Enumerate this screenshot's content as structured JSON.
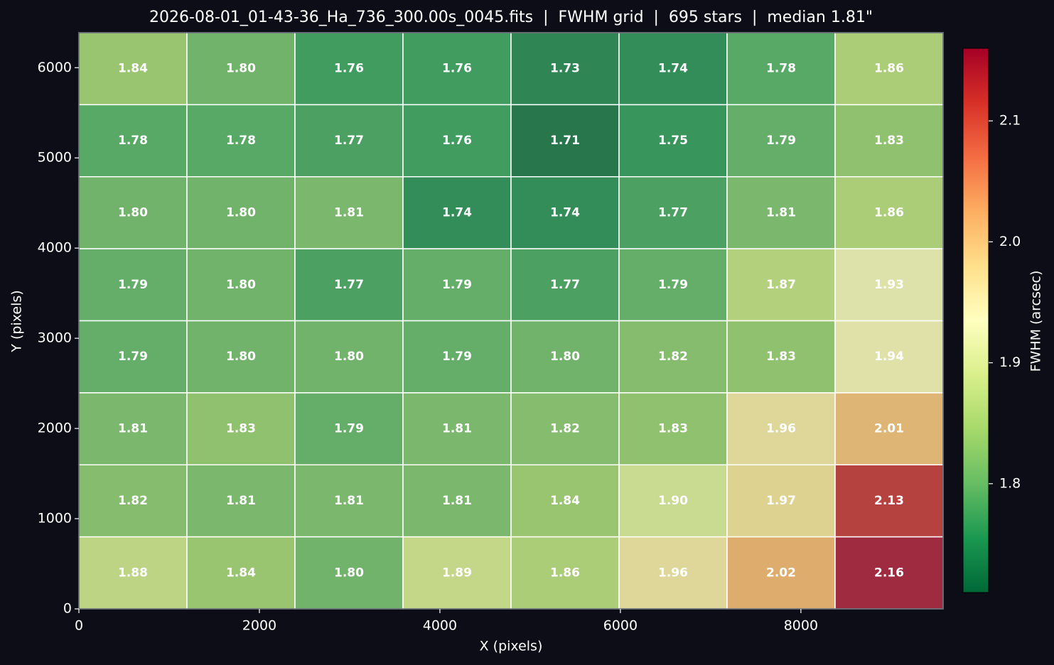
{
  "chart_data": {
    "type": "heatmap",
    "title": "2026-08-01_01-43-36_Ha_736_300.00s_0045.fits  |  FWHM grid  |  695 stars  |  median 1.81\"",
    "x_label": "X (pixels)",
    "y_label": "Y (pixels)",
    "colorbar_label": "FWHM (arcsec)",
    "xlim": [
      0,
      9576
    ],
    "ylim": [
      0,
      6388
    ],
    "xticks": [
      0,
      2000,
      4000,
      6000,
      8000
    ],
    "yticks": [
      0,
      1000,
      2000,
      3000,
      4000,
      5000,
      6000
    ],
    "clim": [
      1.71,
      2.16
    ],
    "cticks": [
      1.8,
      1.9,
      {
        "value": 2,
        "label": "2.0"
      },
      2.1
    ],
    "colormap": [
      "#006837",
      "#1a9850",
      "#66bd63",
      "#a6d96a",
      "#d9ef8b",
      "#ffffbf",
      "#fee08b",
      "#fdae61",
      "#f46d43",
      "#d73027",
      "#a50026"
    ],
    "values": [
      [
        1.84,
        1.8,
        1.76,
        1.76,
        1.73,
        1.74,
        1.78,
        1.86
      ],
      [
        1.78,
        1.78,
        1.77,
        1.76,
        1.71,
        1.75,
        1.79,
        1.83
      ],
      [
        1.8,
        1.8,
        1.81,
        1.74,
        1.74,
        1.77,
        1.81,
        1.86
      ],
      [
        1.79,
        1.8,
        1.77,
        1.79,
        1.77,
        1.79,
        1.87,
        1.93
      ],
      [
        1.79,
        1.8,
        1.8,
        1.79,
        1.8,
        1.82,
        1.83,
        1.94
      ],
      [
        1.81,
        1.83,
        1.79,
        1.81,
        1.82,
        1.83,
        1.96,
        2.01
      ],
      [
        1.82,
        1.81,
        1.81,
        1.81,
        1.84,
        1.9,
        1.97,
        2.13
      ],
      [
        1.88,
        1.84,
        1.8,
        1.89,
        1.86,
        1.96,
        2.02,
        2.16
      ]
    ],
    "value_labels": [
      [
        "1.84",
        "1.80",
        "1.76",
        "1.76",
        "1.73",
        "1.74",
        "1.78",
        "1.86"
      ],
      [
        "1.78",
        "1.78",
        "1.77",
        "1.76",
        "1.71",
        "1.75",
        "1.79",
        "1.83"
      ],
      [
        "1.80",
        "1.80",
        "1.81",
        "1.74",
        "1.74",
        "1.77",
        "1.81",
        "1.86"
      ],
      [
        "1.79",
        "1.80",
        "1.77",
        "1.79",
        "1.77",
        "1.79",
        "1.87",
        "1.93"
      ],
      [
        "1.79",
        "1.80",
        "1.80",
        "1.79",
        "1.80",
        "1.82",
        "1.83",
        "1.94"
      ],
      [
        "1.81",
        "1.83",
        "1.79",
        "1.81",
        "1.82",
        "1.83",
        "1.96",
        "2.01"
      ],
      [
        "1.82",
        "1.81",
        "1.81",
        "1.81",
        "1.84",
        "1.90",
        "1.97",
        "2.13"
      ],
      [
        "1.88",
        "1.84",
        "1.80",
        "1.89",
        "1.86",
        "1.96",
        "2.02",
        "2.16"
      ]
    ]
  }
}
